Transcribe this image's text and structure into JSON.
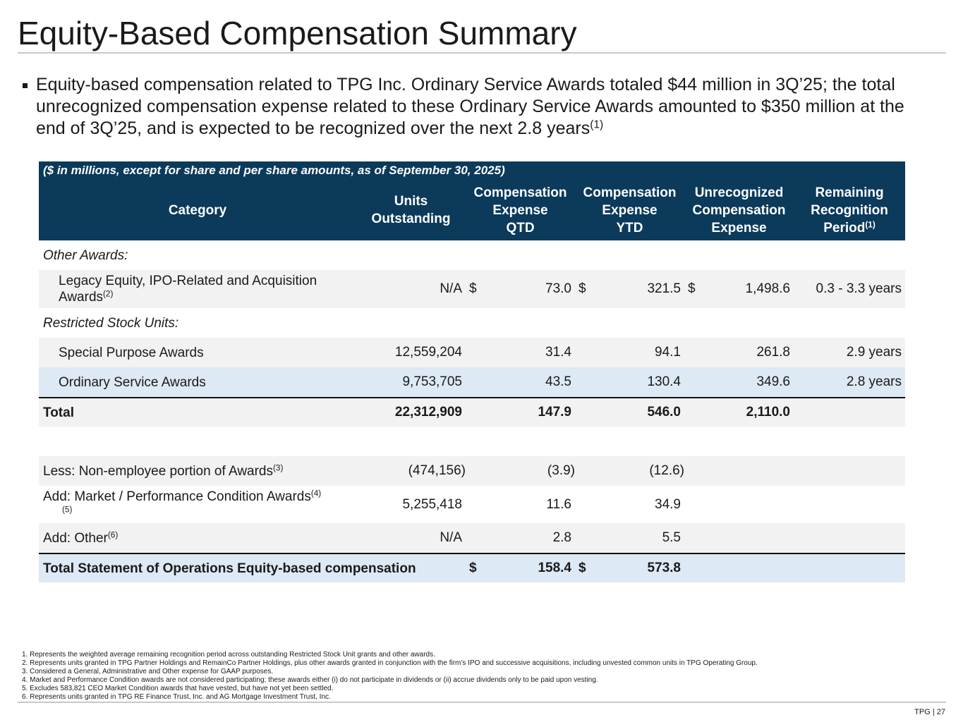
{
  "header": {
    "title": "Equity-Based Compensation Summary"
  },
  "bullet": {
    "text": "Equity-based compensation related to TPG Inc. Ordinary Service Awards totaled $44 million in 3Q’25; the total unrecognized compensation expense related to these Ordinary Service Awards amounted to $350 million at the end of 3Q’25, and is expected to be recognized over the next 2.8 years",
    "sup": "(1)"
  },
  "table": {
    "note": "($ in millions, except for share and per share amounts, as of September 30, 2025)",
    "columns": [
      {
        "lines": [
          "Category"
        ]
      },
      {
        "lines": [
          "Units",
          "Outstanding"
        ]
      },
      {
        "lines": [
          "Compensation",
          "Expense",
          "QTD"
        ]
      },
      {
        "lines": [
          "Compensation",
          "Expense",
          "YTD"
        ]
      },
      {
        "lines": [
          "Unrecognized",
          "Compensation",
          "Expense"
        ]
      },
      {
        "lines": [
          "Remaining",
          "Recognition",
          "Period"
        ],
        "sup": "(1)"
      }
    ],
    "rows": [
      {
        "label": "Other Awards:"
      },
      {
        "label": "Legacy Equity, IPO-Related and Acquisition Awards",
        "label_sup": "(2)",
        "cells": [
          "N/A",
          {
            "currency": "$",
            "value": "73.0"
          },
          {
            "currency": "$",
            "value": "321.5"
          },
          {
            "currency": "$",
            "value": "1,498.6"
          },
          "0.3 - 3.3 years"
        ]
      },
      {
        "label": "Restricted Stock Units:"
      },
      {
        "label": "Special Purpose Awards",
        "cells": [
          "12,559,204",
          "31.4",
          "94.1",
          "261.8",
          "2.9 years"
        ]
      },
      {
        "label": "Ordinary Service Awards",
        "cells": [
          "9,753,705",
          "43.5",
          "130.4",
          "349.6",
          "2.8 years"
        ]
      },
      {
        "label": "Total",
        "cells": [
          "22,312,909",
          "147.9",
          "546.0",
          "2,110.0",
          null
        ]
      },
      {
        "label": "Less: Non-employee portion of Awards",
        "label_sup": "(3)",
        "cells": [
          "(474,156)",
          "(3.9)",
          "(12.6)",
          null,
          null
        ]
      },
      {
        "label": "Add: Market / Performance Condition Awards",
        "label_sup": "(4)(5)",
        "cells": [
          "5,255,418",
          "11.6",
          "34.9",
          null,
          null
        ]
      },
      {
        "label": "Add: Other",
        "label_sup": "(6)",
        "cells": [
          "N/A",
          "2.8",
          "5.5",
          null,
          null
        ]
      },
      {
        "label": "Total Statement of Operations Equity-based compensation",
        "cells": [
          null,
          {
            "currency": "$",
            "value": "158.4"
          },
          {
            "currency": "$",
            "value": "573.8"
          },
          null,
          null
        ]
      }
    ]
  },
  "footnotes": [
    "1. Represents the weighted average remaining recognition period across outstanding Restricted Stock Unit grants and other awards.",
    "2. Represents units granted in TPG Partner Holdings and RemainCo Partner Holdings, plus other awards granted in conjunction with the firm’s IPO and successive acquisitions, including unvested common units in TPG Operating Group.",
    "3. Considered a General, Administrative and Other expense for GAAP purposes.",
    "4. Market and Performance Condition awards are not considered participating; these awards either (i) do not participate in dividends or (ii) accrue dividends only to be paid upon vesting.",
    "5. Excludes 583,821 CEO Market Condition awards that have vested, but have not yet been settled.",
    "6. Represents units granted in TPG RE Finance Trust, Inc. and AG Mortgage Investment Trust, Inc."
  ],
  "footer": {
    "page": "TPG | 27"
  }
}
